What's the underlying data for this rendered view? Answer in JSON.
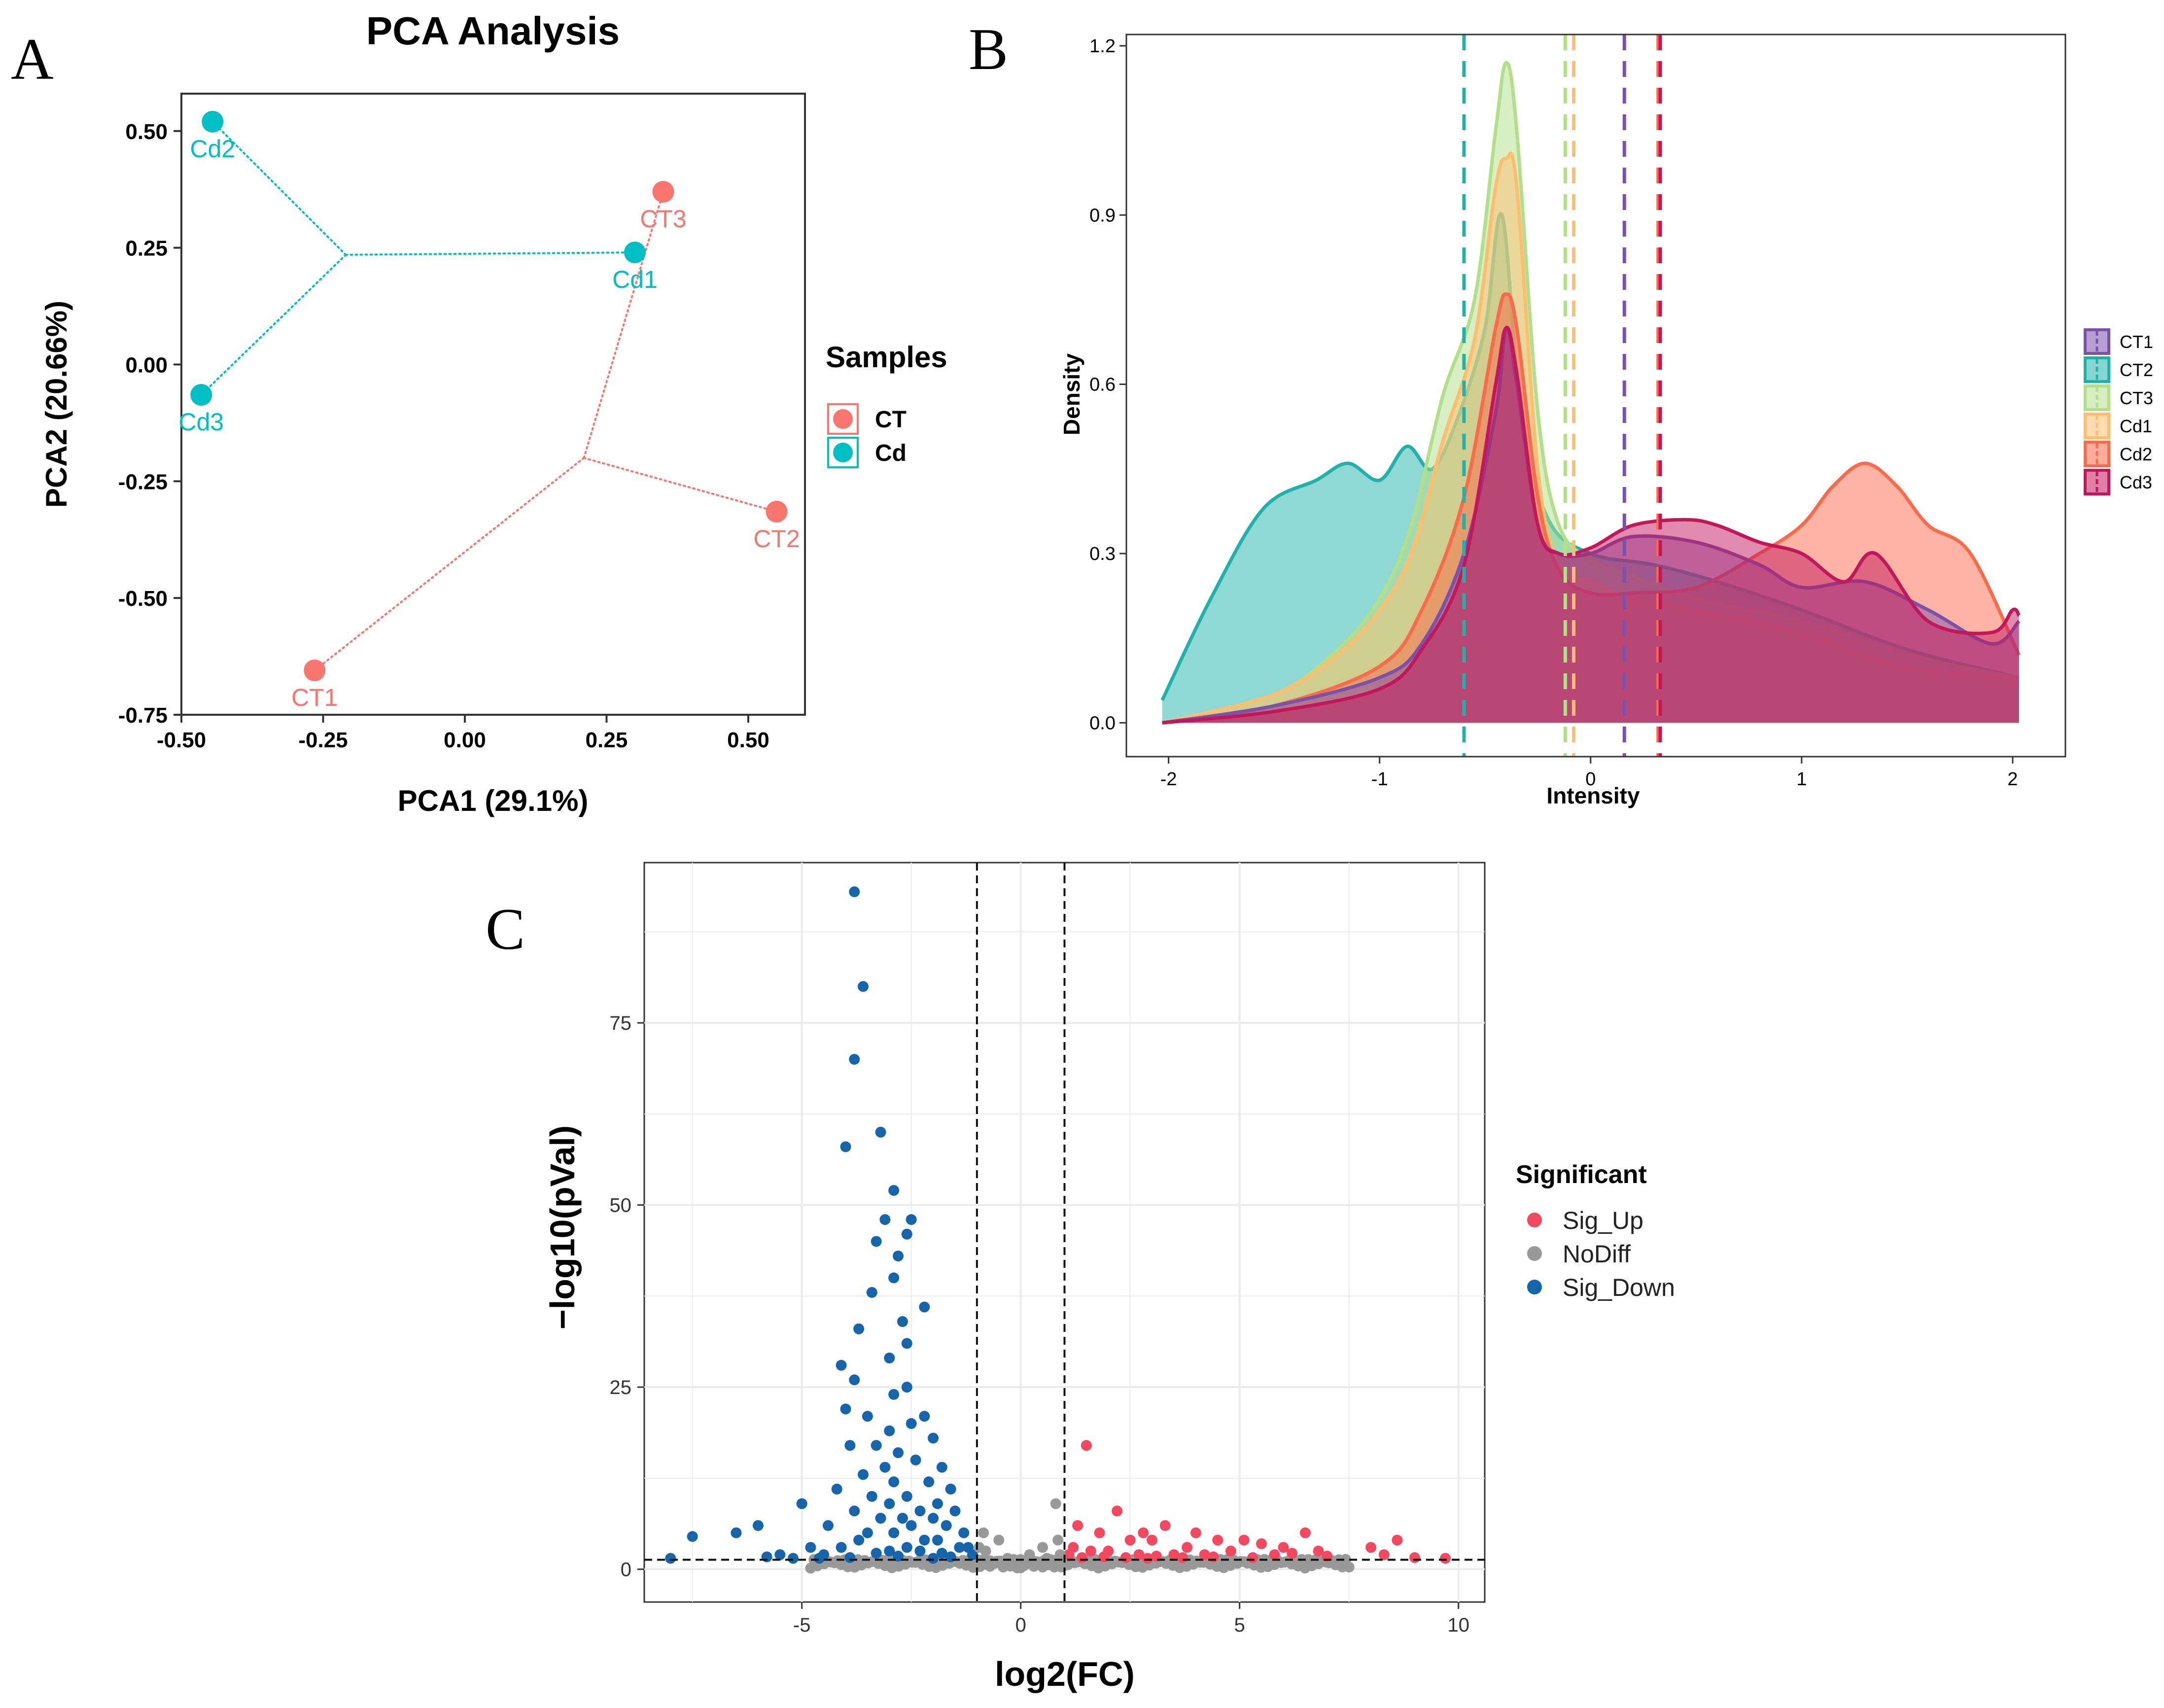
{
  "panels": {
    "A": "A",
    "B": "B",
    "C": "C"
  },
  "chart_data": [
    {
      "type": "scatter",
      "panel": "A",
      "title": "PCA Analysis",
      "xlabel": "PCA1 (29.1%)",
      "ylabel": "PCA2 (20.66%)",
      "xlim": [
        -0.5,
        0.6
      ],
      "ylim": [
        -0.75,
        0.58
      ],
      "xticks": [
        -0.5,
        -0.25,
        0.0,
        0.25,
        0.5
      ],
      "xtick_labels": [
        "-0.50",
        "-0.25",
        "0.00",
        "0.25",
        "0.50"
      ],
      "yticks": [
        -0.75,
        -0.5,
        -0.25,
        0.0,
        0.25,
        0.5
      ],
      "ytick_labels": [
        "-0.75",
        "-0.50",
        "-0.25",
        "0.00",
        "0.25",
        "0.50"
      ],
      "legend": {
        "title": "Samples",
        "position": "right",
        "entries": [
          "CT",
          "Cd"
        ],
        "colors": [
          "#f8766d",
          "#00bfc4"
        ]
      },
      "groups": [
        {
          "name": "CT",
          "color": "#f8766d",
          "centroid": [
            0.21,
            -0.2
          ],
          "points": [
            {
              "label": "CT1",
              "x": -0.265,
              "y": -0.655
            },
            {
              "label": "CT2",
              "x": 0.55,
              "y": -0.315
            },
            {
              "label": "CT3",
              "x": 0.35,
              "y": 0.37
            }
          ]
        },
        {
          "name": "Cd",
          "color": "#00bfc4",
          "centroid": [
            -0.21,
            0.235
          ],
          "points": [
            {
              "label": "Cd1",
              "x": 0.3,
              "y": 0.24
            },
            {
              "label": "Cd2",
              "x": -0.445,
              "y": 0.52
            },
            {
              "label": "Cd3",
              "x": -0.465,
              "y": -0.065
            }
          ]
        }
      ]
    },
    {
      "type": "area",
      "panel": "B",
      "title": "",
      "xlabel": "Intensity",
      "ylabel": "Density",
      "xlim": [
        -2.2,
        2.25
      ],
      "ylim": [
        -0.06,
        1.22
      ],
      "xticks": [
        -2,
        -1,
        0,
        1,
        2
      ],
      "xtick_labels": [
        "-2",
        "-1",
        "0",
        "1",
        "2"
      ],
      "yticks": [
        0.0,
        0.3,
        0.6,
        0.9,
        1.2
      ],
      "ytick_labels": [
        "0.0",
        "0.3",
        "0.6",
        "0.9",
        "1.2"
      ],
      "legend": {
        "position": "right",
        "entries": [
          "CT1",
          "CT2",
          "CT3",
          "Cd1",
          "Cd2",
          "Cd3"
        ]
      },
      "series": [
        {
          "name": "CT2",
          "color": "#20b2aa",
          "mean": -0.6,
          "x": [
            -2.03,
            -1.8,
            -1.55,
            -1.3,
            -1.15,
            -1.0,
            -0.87,
            -0.75,
            -0.62,
            -0.5,
            -0.42,
            -0.33,
            -0.2,
            0.0,
            0.3,
            0.6,
            1.0,
            1.5,
            2.03
          ],
          "y": [
            0.04,
            0.22,
            0.38,
            0.43,
            0.46,
            0.43,
            0.49,
            0.45,
            0.55,
            0.7,
            0.9,
            0.55,
            0.36,
            0.3,
            0.28,
            0.25,
            0.2,
            0.13,
            0.08
          ]
        },
        {
          "name": "CT3",
          "color": "#b2df8a",
          "mean": -0.12,
          "x": [
            -2.03,
            -1.5,
            -1.2,
            -1.0,
            -0.85,
            -0.7,
            -0.55,
            -0.45,
            -0.4,
            -0.35,
            -0.25,
            -0.15,
            0.0,
            0.2,
            0.5,
            1.0,
            1.5,
            2.03
          ],
          "y": [
            0.0,
            0.05,
            0.13,
            0.22,
            0.35,
            0.58,
            0.75,
            1.05,
            1.17,
            1.05,
            0.55,
            0.35,
            0.29,
            0.26,
            0.22,
            0.18,
            0.12,
            0.08
          ]
        },
        {
          "name": "Cd1",
          "color": "#fdbf6f",
          "mean": -0.08,
          "x": [
            -2.03,
            -1.5,
            -1.2,
            -1.0,
            -0.85,
            -0.7,
            -0.55,
            -0.45,
            -0.4,
            -0.35,
            -0.25,
            -0.15,
            0.0,
            0.2,
            0.5,
            1.0,
            1.5,
            2.03
          ],
          "y": [
            0.0,
            0.05,
            0.12,
            0.2,
            0.3,
            0.5,
            0.68,
            0.95,
            1.0,
            0.95,
            0.45,
            0.28,
            0.25,
            0.22,
            0.2,
            0.16,
            0.1,
            0.08
          ]
        },
        {
          "name": "Cd2",
          "color": "#fb6a4a",
          "mean": 0.32,
          "x": [
            -2.03,
            -1.5,
            -1.0,
            -0.8,
            -0.6,
            -0.45,
            -0.4,
            -0.35,
            -0.25,
            -0.15,
            0.0,
            0.2,
            0.5,
            0.8,
            1.0,
            1.15,
            1.3,
            1.45,
            1.6,
            1.8,
            2.03
          ],
          "y": [
            0.0,
            0.03,
            0.1,
            0.2,
            0.4,
            0.7,
            0.76,
            0.7,
            0.4,
            0.27,
            0.23,
            0.23,
            0.24,
            0.3,
            0.35,
            0.42,
            0.46,
            0.42,
            0.35,
            0.3,
            0.12
          ]
        },
        {
          "name": "CT1",
          "color": "#7b52ab",
          "mean": 0.16,
          "x": [
            -2.03,
            -1.5,
            -1.0,
            -0.8,
            -0.6,
            -0.45,
            -0.4,
            -0.35,
            -0.25,
            -0.15,
            0.0,
            0.2,
            0.5,
            0.8,
            1.0,
            1.3,
            1.6,
            1.9,
            2.03
          ],
          "y": [
            0.0,
            0.03,
            0.08,
            0.14,
            0.3,
            0.55,
            0.7,
            0.6,
            0.35,
            0.3,
            0.3,
            0.33,
            0.32,
            0.28,
            0.24,
            0.25,
            0.2,
            0.14,
            0.18
          ]
        },
        {
          "name": "Cd3",
          "color": "#c2185b",
          "mean": 0.33,
          "x": [
            -2.03,
            -1.5,
            -1.0,
            -0.8,
            -0.6,
            -0.45,
            -0.4,
            -0.35,
            -0.25,
            -0.15,
            0.0,
            0.2,
            0.45,
            0.6,
            0.8,
            1.0,
            1.2,
            1.35,
            1.6,
            1.9,
            2.0,
            2.03
          ],
          "y": [
            0.0,
            0.02,
            0.06,
            0.13,
            0.28,
            0.6,
            0.7,
            0.62,
            0.35,
            0.3,
            0.31,
            0.35,
            0.36,
            0.35,
            0.32,
            0.3,
            0.25,
            0.3,
            0.18,
            0.16,
            0.2,
            0.19
          ]
        }
      ]
    },
    {
      "type": "scatter",
      "panel": "C",
      "title": "",
      "xlabel": "log2(FC)",
      "ylabel": "−log10(pVal)",
      "xlim": [
        -8.6,
        10.6
      ],
      "ylim": [
        -4.5,
        97
      ],
      "xticks": [
        -5,
        0,
        5,
        10
      ],
      "xtick_labels": [
        "-5",
        "0",
        "5",
        "10"
      ],
      "yticks": [
        0,
        25,
        50,
        75
      ],
      "ytick_labels": [
        "0",
        "25",
        "50",
        "75"
      ],
      "thresholds": {
        "log2fc": [
          -1,
          1
        ],
        "neg_log10_p": 1.3
      },
      "legend": {
        "title": "Significant",
        "position": "right",
        "entries": [
          "Sig_Up",
          "NoDiff",
          "Sig_Down"
        ],
        "colors": [
          "#f4485e",
          "#999999",
          "#1565ad"
        ]
      },
      "series": [
        {
          "name": "Sig_Down",
          "color": "#1565ad",
          "points": [
            [
              -3.8,
              93
            ],
            [
              -3.6,
              80
            ],
            [
              -3.8,
              70
            ],
            [
              -3.2,
              60
            ],
            [
              -4.0,
              58
            ],
            [
              -2.9,
              52
            ],
            [
              -2.5,
              48
            ],
            [
              -3.1,
              48
            ],
            [
              -2.6,
              46
            ],
            [
              -3.3,
              45
            ],
            [
              -2.8,
              43
            ],
            [
              -2.9,
              40
            ],
            [
              -3.4,
              38
            ],
            [
              -2.2,
              36
            ],
            [
              -2.7,
              34
            ],
            [
              -3.7,
              33
            ],
            [
              -2.6,
              31
            ],
            [
              -3.0,
              29
            ],
            [
              -4.1,
              28
            ],
            [
              -3.8,
              26
            ],
            [
              -2.6,
              25
            ],
            [
              -2.9,
              24
            ],
            [
              -4.0,
              22
            ],
            [
              -3.5,
              21
            ],
            [
              -2.2,
              21
            ],
            [
              -2.5,
              20
            ],
            [
              -3.0,
              19
            ],
            [
              -2.0,
              18
            ],
            [
              -3.3,
              17
            ],
            [
              -3.9,
              17
            ],
            [
              -2.8,
              16
            ],
            [
              -2.4,
              15
            ],
            [
              -3.1,
              14
            ],
            [
              -1.8,
              14
            ],
            [
              -3.6,
              13
            ],
            [
              -2.1,
              12
            ],
            [
              -2.9,
              12
            ],
            [
              -4.2,
              11
            ],
            [
              -1.6,
              11
            ],
            [
              -3.4,
              10
            ],
            [
              -2.6,
              10
            ],
            [
              -1.9,
              9
            ],
            [
              -3.0,
              9
            ],
            [
              -2.3,
              8
            ],
            [
              -3.8,
              8
            ],
            [
              -1.5,
              8
            ],
            [
              -2.7,
              7
            ],
            [
              -3.2,
              7
            ],
            [
              -2.0,
              7
            ],
            [
              -4.4,
              6
            ],
            [
              -1.7,
              6
            ],
            [
              -2.5,
              6
            ],
            [
              -3.5,
              5
            ],
            [
              -1.3,
              5
            ],
            [
              -2.9,
              5
            ],
            [
              -2.2,
              4
            ],
            [
              -1.9,
              4
            ],
            [
              -3.7,
              4
            ],
            [
              -1.4,
              3
            ],
            [
              -2.6,
              3
            ],
            [
              -4.1,
              3
            ],
            [
              -1.2,
              3
            ],
            [
              -3.0,
              2.5
            ],
            [
              -1.8,
              2.2
            ],
            [
              -2.3,
              2.5
            ],
            [
              -1.1,
              2
            ],
            [
              -5.0,
              9
            ],
            [
              -6.0,
              6
            ],
            [
              -6.5,
              5
            ],
            [
              -7.5,
              4.5
            ],
            [
              -5.5,
              2
            ],
            [
              -4.8,
              3
            ],
            [
              -5.2,
              1.5
            ],
            [
              -4.5,
              2
            ],
            [
              -8.0,
              1.5
            ],
            [
              -3.3,
              2.2
            ],
            [
              -2.8,
              1.8
            ],
            [
              -3.9,
              1.6
            ],
            [
              -1.6,
              1.7
            ],
            [
              -2.0,
              1.5
            ],
            [
              -4.6,
              1.5
            ],
            [
              -5.8,
              1.7
            ]
          ]
        },
        {
          "name": "Sig_Up",
          "color": "#f4485e",
          "points": [
            [
              1.5,
              17
            ],
            [
              2.2,
              8
            ],
            [
              1.3,
              6
            ],
            [
              2.8,
              5
            ],
            [
              3.0,
              4
            ],
            [
              3.3,
              6
            ],
            [
              1.8,
              5
            ],
            [
              2.5,
              4
            ],
            [
              4.0,
              5
            ],
            [
              4.5,
              4
            ],
            [
              5.1,
              4
            ],
            [
              5.5,
              3.5
            ],
            [
              6.0,
              3
            ],
            [
              6.5,
              5
            ],
            [
              6.8,
              2.5
            ],
            [
              8.0,
              3
            ],
            [
              8.6,
              4
            ],
            [
              9.7,
              1.5
            ],
            [
              3.8,
              3
            ],
            [
              1.2,
              3
            ],
            [
              1.6,
              2.5
            ],
            [
              2.0,
              2.5
            ],
            [
              2.7,
              2
            ],
            [
              3.5,
              2
            ],
            [
              4.2,
              2
            ],
            [
              4.8,
              2.5
            ],
            [
              5.8,
              2
            ],
            [
              6.2,
              2.2
            ],
            [
              7.0,
              1.8
            ],
            [
              8.3,
              2
            ],
            [
              9.0,
              1.6
            ],
            [
              1.1,
              2
            ],
            [
              1.9,
              1.7
            ],
            [
              2.4,
              1.6
            ],
            [
              3.1,
              1.8
            ],
            [
              3.7,
              1.6
            ],
            [
              4.4,
              1.7
            ],
            [
              5.3,
              1.6
            ],
            [
              1.4,
              1.6
            ],
            [
              2.9,
              1.5
            ]
          ]
        },
        {
          "name": "NoDiff",
          "color": "#999999",
          "points": [
            [
              0.8,
              9
            ],
            [
              -0.5,
              4
            ],
            [
              0.5,
              3
            ],
            [
              -0.8,
              2.5
            ],
            [
              0.2,
              2
            ],
            [
              -0.3,
              1.5
            ],
            [
              0.6,
              1.5
            ],
            [
              -0.9,
              1.2
            ],
            [
              0.1,
              1
            ],
            [
              -0.6,
              0.8
            ],
            [
              0.9,
              1
            ],
            [
              0.4,
              0.7
            ],
            [
              -0.2,
              0.5
            ],
            [
              0.7,
              0.6
            ],
            [
              -0.7,
              0.4
            ],
            [
              0.3,
              0.4
            ],
            [
              -0.4,
              0.3
            ],
            [
              0.0,
              0.2
            ],
            [
              -1.0,
              0.5
            ],
            [
              1.0,
              0.5
            ],
            [
              0.5,
              0.3
            ],
            [
              -0.1,
              0.6
            ],
            [
              0.9,
              2
            ],
            [
              -0.95,
              3
            ],
            [
              0.85,
              4
            ],
            [
              -0.85,
              5
            ],
            [
              0.75,
              1.2
            ],
            [
              -0.55,
              1.1
            ]
          ]
        }
      ]
    }
  ]
}
